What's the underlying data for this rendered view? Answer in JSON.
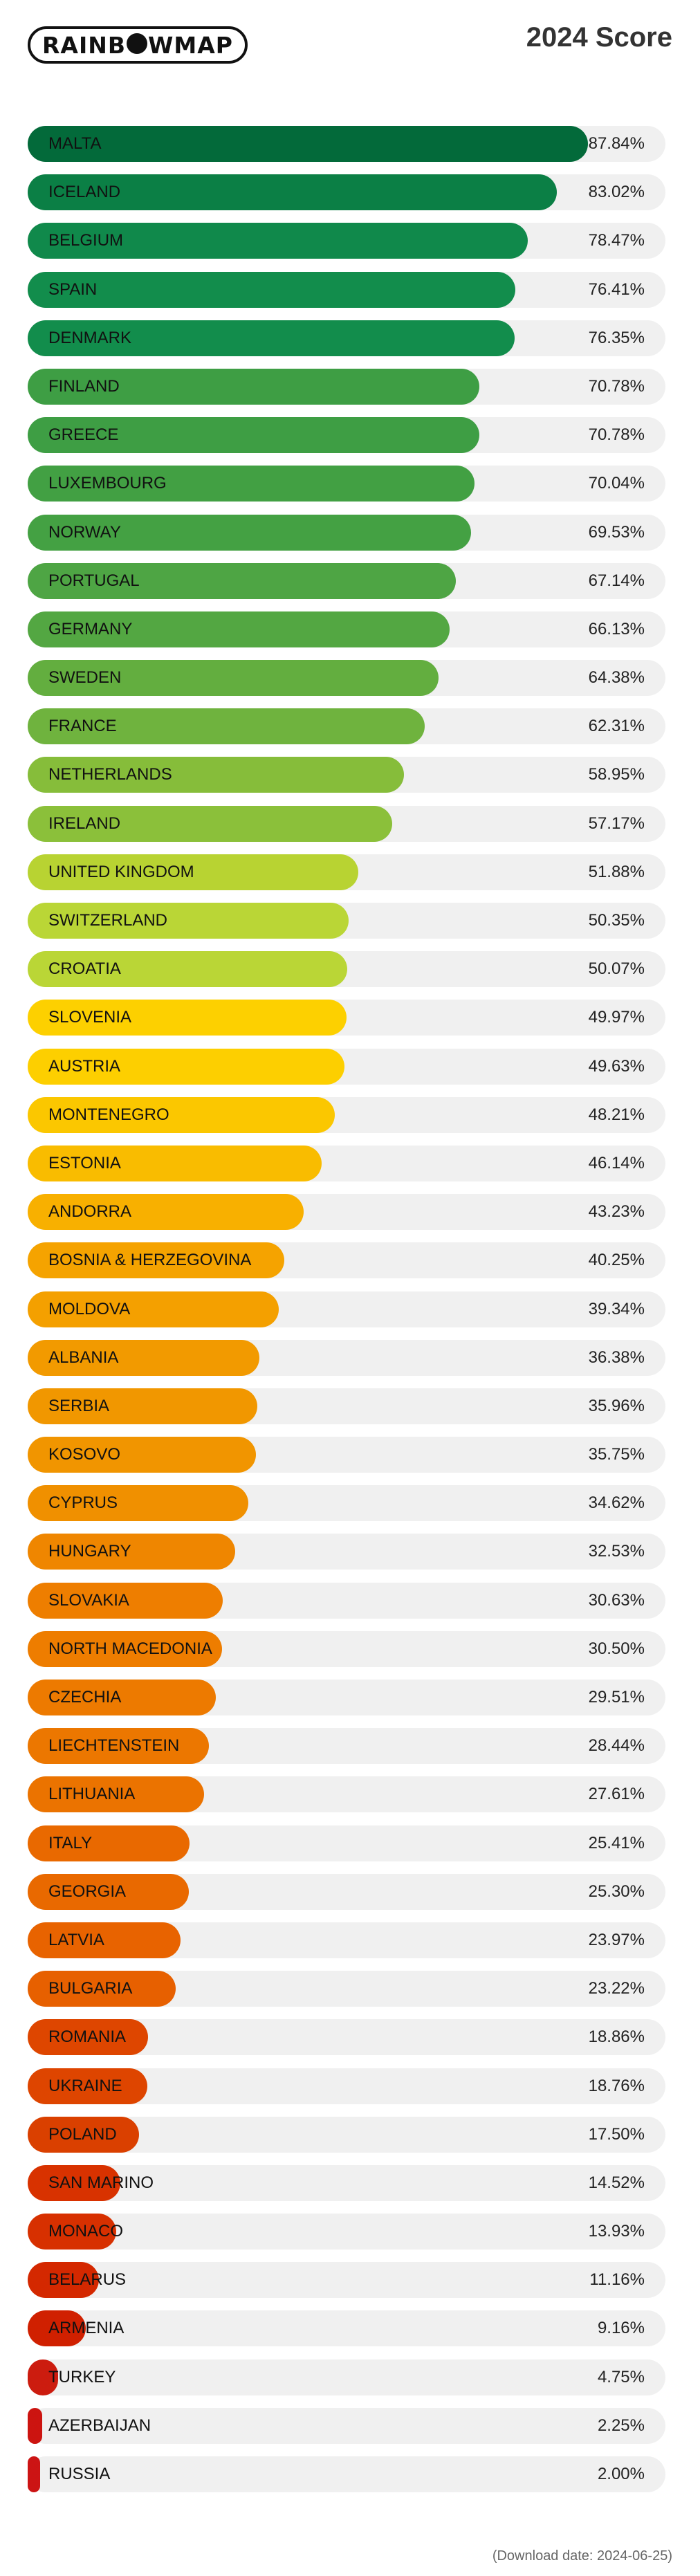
{
  "header": {
    "logo_left": "RAINB",
    "logo_right": "WMAP",
    "title": "2024 Score"
  },
  "footer": {
    "download_date": "(Download date: 2024-06-25)"
  },
  "chart_data": {
    "type": "bar",
    "orientation": "horizontal",
    "title": "2024 Score",
    "ylim": [
      0,
      100
    ],
    "categories": [
      "MALTA",
      "ICELAND",
      "BELGIUM",
      "SPAIN",
      "DENMARK",
      "FINLAND",
      "GREECE",
      "LUXEMBOURG",
      "NORWAY",
      "PORTUGAL",
      "GERMANY",
      "SWEDEN",
      "FRANCE",
      "NETHERLANDS",
      "IRELAND",
      "UNITED KINGDOM",
      "SWITZERLAND",
      "CROATIA",
      "SLOVENIA",
      "AUSTRIA",
      "MONTENEGRO",
      "ESTONIA",
      "ANDORRA",
      "BOSNIA & HERZEGOVINA",
      "MOLDOVA",
      "ALBANIA",
      "SERBIA",
      "KOSOVO",
      "CYPRUS",
      "HUNGARY",
      "SLOVAKIA",
      "NORTH MACEDONIA",
      "CZECHIA",
      "LIECHTENSTEIN",
      "LITHUANIA",
      "ITALY",
      "GEORGIA",
      "LATVIA",
      "BULGARIA",
      "ROMANIA",
      "UKRAINE",
      "POLAND",
      "SAN MARINO",
      "MONACO",
      "BELARUS",
      "ARMENIA",
      "TURKEY",
      "AZERBAIJAN",
      "RUSSIA"
    ],
    "values": [
      87.84,
      83.02,
      78.47,
      76.41,
      76.35,
      70.78,
      70.78,
      70.04,
      69.53,
      67.14,
      66.13,
      64.38,
      62.31,
      58.95,
      57.17,
      51.88,
      50.35,
      50.07,
      49.97,
      49.63,
      48.21,
      46.14,
      43.23,
      40.25,
      39.34,
      36.38,
      35.96,
      35.75,
      34.62,
      32.53,
      30.63,
      30.5,
      29.51,
      28.44,
      27.61,
      25.41,
      25.3,
      23.97,
      23.22,
      18.86,
      18.76,
      17.5,
      14.52,
      13.93,
      11.16,
      9.16,
      4.75,
      2.25,
      2.0
    ],
    "labels": [
      "87.84%",
      "83.02%",
      "78.47%",
      "76.41%",
      "76.35%",
      "70.78%",
      "70.78%",
      "70.04%",
      "69.53%",
      "67.14%",
      "66.13%",
      "64.38%",
      "62.31%",
      "58.95%",
      "57.17%",
      "51.88%",
      "50.35%",
      "50.07%",
      "49.97%",
      "49.63%",
      "48.21%",
      "46.14%",
      "43.23%",
      "40.25%",
      "39.34%",
      "36.38%",
      "35.96%",
      "35.75%",
      "34.62%",
      "32.53%",
      "30.63%",
      "30.50%",
      "29.51%",
      "28.44%",
      "27.61%",
      "25.41%",
      "25.30%",
      "23.97%",
      "23.22%",
      "18.86%",
      "18.76%",
      "17.50%",
      "14.52%",
      "13.93%",
      "11.16%",
      "9.16%",
      "4.75%",
      "2.25%",
      "2.00%"
    ],
    "colors": [
      "#036a3a",
      "#0b7f45",
      "#10894b",
      "#128d4c",
      "#128d4c",
      "#3e9e44",
      "#3e9e44",
      "#42a043",
      "#44a143",
      "#4ea544",
      "#53a742",
      "#63ae3f",
      "#6fb33e",
      "#86bd3a",
      "#8bc03a",
      "#b8d332",
      "#bad636",
      "#bad636",
      "#fdd000",
      "#fdcf00",
      "#fbc700",
      "#f9bc00",
      "#f8b000",
      "#f5a300",
      "#f4a000",
      "#f29a00",
      "#f19700",
      "#f19500",
      "#f09000",
      "#ef8600",
      "#ee7e00",
      "#ee7d00",
      "#ed7a00",
      "#ec7700",
      "#eb7300",
      "#e96900",
      "#e96900",
      "#e86300",
      "#e76000",
      "#de4600",
      "#de4500",
      "#da4000",
      "#d83200",
      "#d73000",
      "#d42800",
      "#d02000",
      "#cc1c0f",
      "#cc1410",
      "#cc1414"
    ],
    "grid": false,
    "legend": "none"
  }
}
